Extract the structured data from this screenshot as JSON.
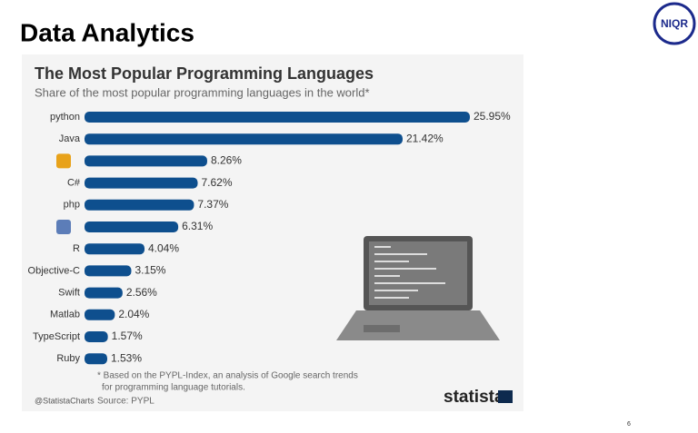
{
  "header": {
    "title": "Data Analytics",
    "logo": "NIQR",
    "page_number": "6"
  },
  "chart_data": {
    "type": "bar",
    "orientation": "horizontal",
    "title": "The Most Popular Programming Languages",
    "subtitle": "Share of the most popular programming languages in the world*",
    "categories": [
      "python",
      "Java",
      null,
      "C#",
      "php",
      null,
      "R",
      "Objective-C",
      "Swift",
      "Matlab",
      "TypeScript",
      "Ruby"
    ],
    "values": [
      25.95,
      21.42,
      8.26,
      7.62,
      7.37,
      6.31,
      4.04,
      3.15,
      2.56,
      2.04,
      1.57,
      1.53
    ],
    "value_labels": [
      "25.95%",
      "21.42%",
      "8.26%",
      "7.62%",
      "7.37%",
      "6.31%",
      "4.04%",
      "3.15%",
      "2.56%",
      "2.04%",
      "1.57%",
      "1.53%"
    ],
    "color": "#0e4f8e",
    "footnote": [
      "* Based on the PYPL-Index, an analysis of Google search trends",
      "for programming language tutorials."
    ],
    "source": "Source: PYPL",
    "handle": "@StatistaCharts",
    "brand": "statista"
  }
}
